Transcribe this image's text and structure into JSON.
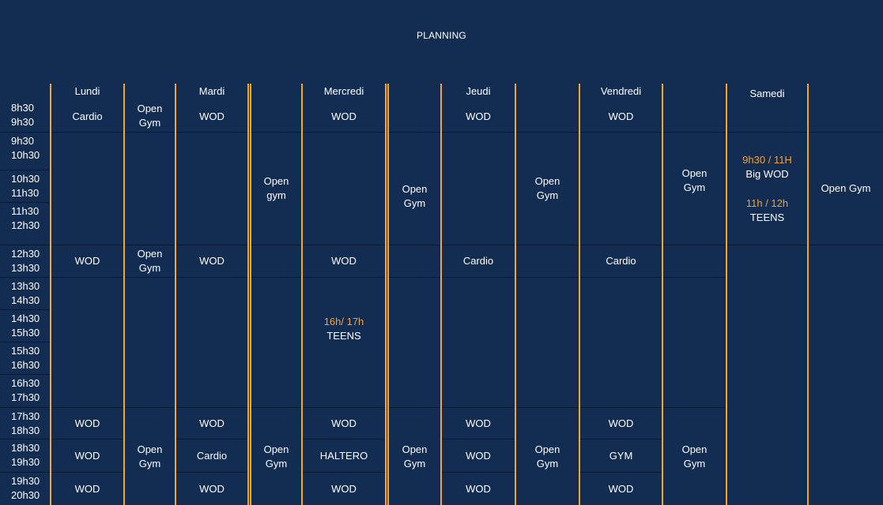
{
  "title": "PLANNING",
  "days": {
    "lundi": "Lundi",
    "mardi": "Mardi",
    "mercredi": "Mercredi",
    "jeudi": "Jeudi",
    "vendredi": "Vendredi",
    "samedi": "Samedi"
  },
  "times": [
    [
      "8h30",
      "9h30"
    ],
    [
      "9h30",
      "10h30"
    ],
    [
      "10h30",
      "11h30"
    ],
    [
      "11h30",
      "12h30"
    ],
    [
      "12h30",
      "13h30"
    ],
    [
      "13h30",
      "14h30"
    ],
    [
      "14h30",
      "15h30"
    ],
    [
      "15h30",
      "16h30"
    ],
    [
      "16h30",
      "17h30"
    ],
    [
      "17h30",
      "18h30"
    ],
    [
      "18h30",
      "19h30"
    ],
    [
      "19h30",
      "20h30"
    ]
  ],
  "slots": {
    "lundi_830": "Cardio",
    "mardi_830": "WOD",
    "mercredi_830": "WOD",
    "jeudi_830": "WOD",
    "vendredi_830": "WOD",
    "open1_830": [
      "Open",
      "Gym"
    ],
    "open1_1230": [
      "Open",
      "Gym"
    ],
    "open2_morning": [
      "Open",
      "gym"
    ],
    "open3_morning": [
      "Open",
      "Gym"
    ],
    "open4_morning": [
      "Open",
      "Gym"
    ],
    "open5_morning": [
      "Open",
      "Gym"
    ],
    "lundi_1230": "WOD",
    "mardi_1230": "WOD",
    "mercredi_1230": "WOD",
    "jeudi_1230": "Cardio",
    "vendredi_1230": "Cardio",
    "mercredi_teens_time": "16h/ 17h",
    "mercredi_teens": "TEENS",
    "samedi_bigwod_time": "9h30 / 11H",
    "samedi_bigwod": "Big WOD",
    "samedi_teens_time": "11h / 12h",
    "samedi_teens": "TEENS",
    "samedi_open": "Open Gym",
    "lundi_1730": "WOD",
    "lundi_1830": "WOD",
    "lundi_1930": "WOD",
    "open1_evening": [
      "Open",
      "Gym"
    ],
    "mardi_1730": "WOD",
    "mardi_1830": "Cardio",
    "mardi_1930": "WOD",
    "open2_evening": [
      "Open",
      "Gym"
    ],
    "mercredi_1730": "WOD",
    "mercredi_1830": "HALTERO",
    "mercredi_1930": "WOD",
    "open3_evening": [
      "Open",
      "Gym"
    ],
    "jeudi_1730": "WOD",
    "jeudi_1830": "WOD",
    "jeudi_1930": "WOD",
    "open4_evening": [
      "Open",
      "Gym"
    ],
    "vendredi_1730": "WOD",
    "vendredi_1830": "GYM",
    "vendredi_1930": "WOD",
    "open5_evening": [
      "Open",
      "Gym"
    ]
  }
}
